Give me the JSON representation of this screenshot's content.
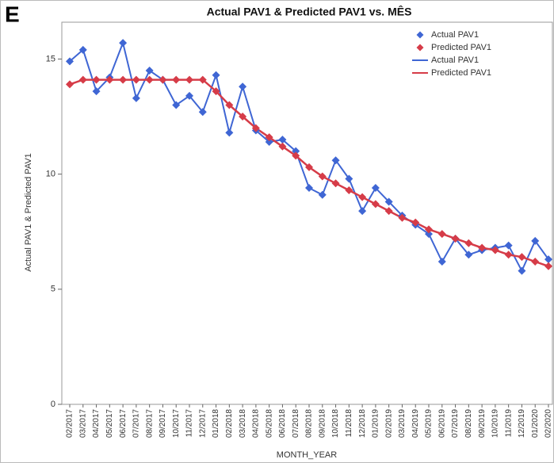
{
  "panel_label": "E",
  "chart_data": {
    "type": "line",
    "title": "Actual PAV1 & Predicted PAV1 vs. MÊS",
    "x_label": "MONTH_YEAR",
    "y_label": "Actual PAV1 & Predicted PAV1",
    "categories": [
      "02/2017",
      "03/2017",
      "04/2017",
      "05/2017",
      "06/2017",
      "07/2017",
      "08/2017",
      "09/2017",
      "10/2017",
      "11/2017",
      "12/2017",
      "01/2018",
      "02/2018",
      "03/2018",
      "04/2018",
      "05/2018",
      "06/2018",
      "07/2018",
      "08/2018",
      "09/2018",
      "10/2018",
      "11/2018",
      "12/2018",
      "01/2019",
      "02/2019",
      "03/2019",
      "04/2019",
      "05/2019",
      "06/2019",
      "07/2019",
      "08/2019",
      "09/2019",
      "10/2019",
      "11/2019",
      "12/2019",
      "01/2020",
      "02/2020"
    ],
    "series": [
      {
        "name": "Actual PAV1",
        "color": "#3f66d4",
        "values": [
          14.9,
          15.4,
          13.6,
          14.2,
          15.7,
          13.3,
          14.5,
          14.1,
          13.0,
          13.4,
          12.7,
          14.3,
          11.8,
          13.8,
          11.9,
          11.4,
          11.5,
          11.0,
          9.4,
          9.1,
          10.6,
          9.8,
          8.4,
          9.4,
          8.8,
          8.2,
          7.8,
          7.4,
          6.2,
          7.2,
          6.5,
          6.7,
          6.8,
          6.9,
          5.8,
          7.1,
          6.3
        ]
      },
      {
        "name": "Predicted PAV1",
        "color": "#d63c48",
        "values": [
          13.9,
          14.1,
          14.1,
          14.1,
          14.1,
          14.1,
          14.1,
          14.1,
          14.1,
          14.1,
          14.1,
          13.6,
          13.0,
          12.5,
          12.0,
          11.6,
          11.2,
          10.8,
          10.3,
          9.9,
          9.6,
          9.3,
          9.0,
          8.7,
          8.4,
          8.1,
          7.9,
          7.6,
          7.4,
          7.2,
          7.0,
          6.8,
          6.7,
          6.5,
          6.4,
          6.2,
          6.0
        ]
      }
    ],
    "ylim": [
      0,
      16.6
    ],
    "yticks": [
      0,
      5,
      10,
      15
    ],
    "legend": "upper right"
  }
}
